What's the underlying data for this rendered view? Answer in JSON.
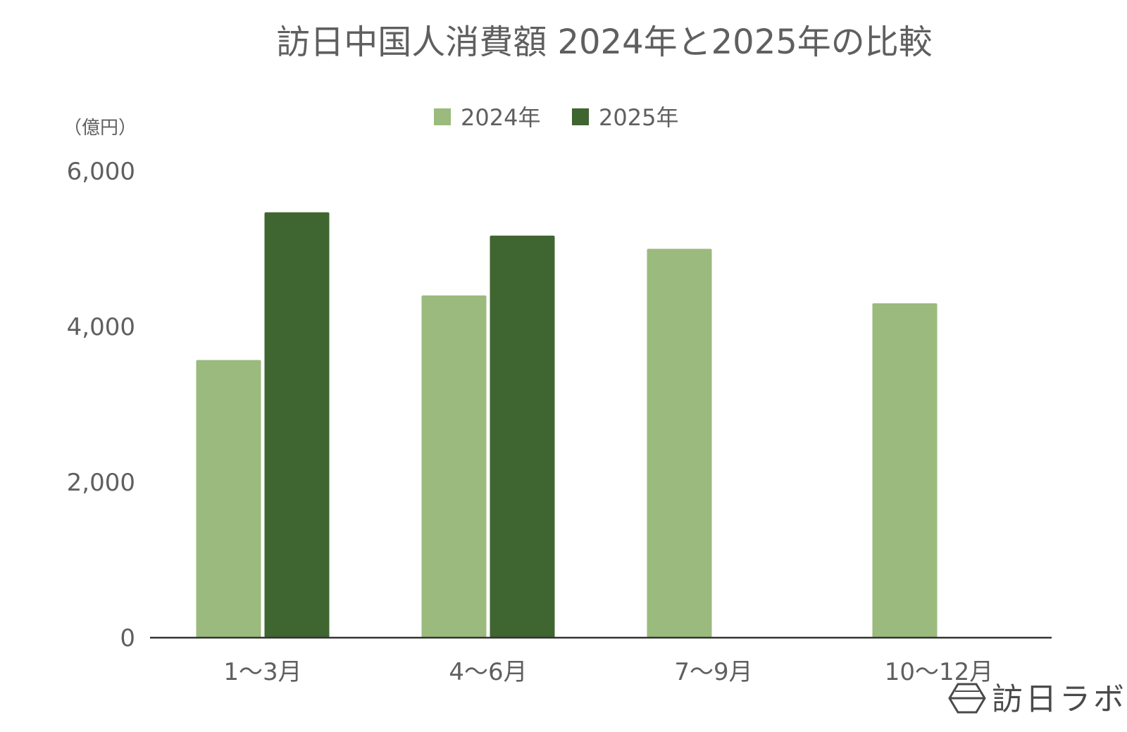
{
  "chart_data": {
    "type": "bar",
    "title": "訪日中国人消費額 2024年と2025年の比較",
    "unit_label": "（億円）",
    "categories": [
      "1〜3月",
      "4〜6月",
      "7〜9月",
      "10〜12月"
    ],
    "series": [
      {
        "name": "2024年",
        "color": "#9bba7e",
        "values": [
          3570,
          4400,
          5000,
          4300
        ]
      },
      {
        "name": "2025年",
        "color": "#3f6531",
        "values": [
          5470,
          5170,
          null,
          null
        ]
      }
    ],
    "ylim": [
      0,
      6000
    ],
    "yticks": [
      0,
      2000,
      4000,
      6000
    ],
    "ytick_labels": [
      "0",
      "2,000",
      "4,000",
      "6,000"
    ],
    "grid": false,
    "legend_position": "top-center"
  },
  "watermark": {
    "text": "訪日ラボ",
    "icon": "hexagon-logo-icon"
  }
}
